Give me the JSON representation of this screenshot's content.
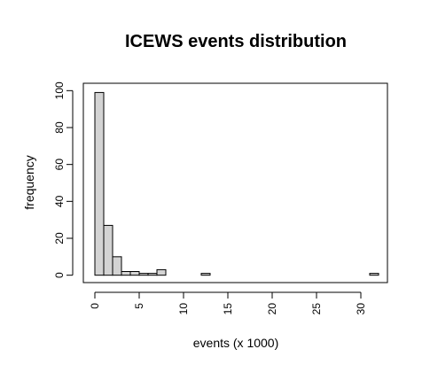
{
  "chart_data": {
    "type": "bar",
    "title": "ICEWS events distribution",
    "xlabel": "events (x 1000)",
    "ylabel": "frequency",
    "bin_width": 1,
    "bins": [
      {
        "start": 0,
        "end": 1,
        "count": 99
      },
      {
        "start": 1,
        "end": 2,
        "count": 27
      },
      {
        "start": 2,
        "end": 3,
        "count": 10
      },
      {
        "start": 3,
        "end": 4,
        "count": 2
      },
      {
        "start": 4,
        "end": 5,
        "count": 2
      },
      {
        "start": 5,
        "end": 6,
        "count": 1
      },
      {
        "start": 6,
        "end": 7,
        "count": 1
      },
      {
        "start": 7,
        "end": 8,
        "count": 3
      },
      {
        "start": 8,
        "end": 9,
        "count": 0
      },
      {
        "start": 9,
        "end": 10,
        "count": 0
      },
      {
        "start": 10,
        "end": 11,
        "count": 0
      },
      {
        "start": 11,
        "end": 12,
        "count": 0
      },
      {
        "start": 12,
        "end": 13,
        "count": 1
      },
      {
        "start": 13,
        "end": 14,
        "count": 0
      },
      {
        "start": 14,
        "end": 15,
        "count": 0
      },
      {
        "start": 15,
        "end": 16,
        "count": 0
      },
      {
        "start": 16,
        "end": 17,
        "count": 0
      },
      {
        "start": 17,
        "end": 18,
        "count": 0
      },
      {
        "start": 18,
        "end": 19,
        "count": 0
      },
      {
        "start": 19,
        "end": 20,
        "count": 0
      },
      {
        "start": 20,
        "end": 21,
        "count": 0
      },
      {
        "start": 21,
        "end": 22,
        "count": 0
      },
      {
        "start": 22,
        "end": 23,
        "count": 0
      },
      {
        "start": 23,
        "end": 24,
        "count": 0
      },
      {
        "start": 24,
        "end": 25,
        "count": 0
      },
      {
        "start": 25,
        "end": 26,
        "count": 0
      },
      {
        "start": 26,
        "end": 27,
        "count": 0
      },
      {
        "start": 27,
        "end": 28,
        "count": 0
      },
      {
        "start": 28,
        "end": 29,
        "count": 0
      },
      {
        "start": 29,
        "end": 30,
        "count": 0
      },
      {
        "start": 30,
        "end": 31,
        "count": 0
      },
      {
        "start": 31,
        "end": 32,
        "count": 1
      }
    ],
    "xlim": [
      -1.3,
      33
    ],
    "ylim": [
      -4,
      104
    ],
    "x_ticks": [
      0,
      5,
      10,
      15,
      20,
      25,
      30
    ],
    "y_ticks": [
      0,
      20,
      40,
      60,
      80,
      100
    ],
    "grid": false,
    "bar_color": "#d3d3d3",
    "edge_color": "#000000"
  }
}
